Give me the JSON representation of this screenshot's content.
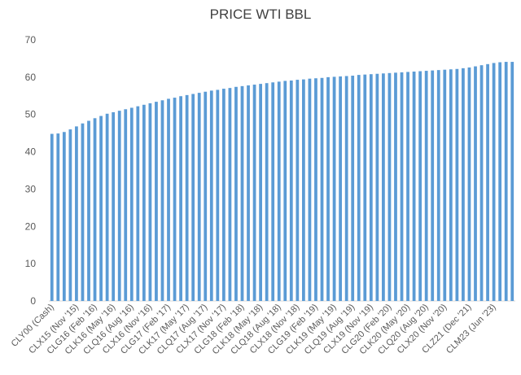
{
  "chart_data": {
    "type": "bar",
    "title": "PRICE WTI BBL",
    "ylim": [
      0,
      70
    ],
    "yticks": [
      0,
      10,
      20,
      30,
      40,
      50,
      60,
      70
    ],
    "grid": false,
    "color": "#5b9bd5",
    "values": [
      44.8,
      44.9,
      45.3,
      46.0,
      46.8,
      47.6,
      48.3,
      49.0,
      49.6,
      50.2,
      50.6,
      51.0,
      51.4,
      51.8,
      52.2,
      52.6,
      53.0,
      53.4,
      53.8,
      54.2,
      54.5,
      54.9,
      55.2,
      55.5,
      55.8,
      56.1,
      56.4,
      56.6,
      56.9,
      57.1,
      57.4,
      57.6,
      57.8,
      58.0,
      58.2,
      58.4,
      58.6,
      58.8,
      59.0,
      59.1,
      59.3,
      59.4,
      59.6,
      59.7,
      59.8,
      60.0,
      60.1,
      60.2,
      60.3,
      60.4,
      60.6,
      60.7,
      60.8,
      60.9,
      61.0,
      61.1,
      61.2,
      61.3,
      61.4,
      61.5,
      61.6,
      61.7,
      61.8,
      61.9,
      62.0,
      62.1,
      62.2,
      62.4,
      62.6,
      62.9,
      63.2,
      63.5,
      63.8,
      64.0,
      64.1,
      64.1
    ],
    "tick_labels": [
      {
        "index": 0,
        "text": "CLY00 (Cash)"
      },
      {
        "index": 4,
        "text": "CLX15 (Nov '15)"
      },
      {
        "index": 7,
        "text": "CLG16 (Feb '16)"
      },
      {
        "index": 10,
        "text": "CLK16 (May '16)"
      },
      {
        "index": 13,
        "text": "CLQ16 (Aug '16)"
      },
      {
        "index": 16,
        "text": "CLX16 (Nov '16)"
      },
      {
        "index": 19,
        "text": "CLG17 (Feb '17)"
      },
      {
        "index": 22,
        "text": "CLK17 (May '17)"
      },
      {
        "index": 25,
        "text": "CLQ17 (Aug '17)"
      },
      {
        "index": 28,
        "text": "CLX17 (Nov '17)"
      },
      {
        "index": 31,
        "text": "CLG18 (Feb '18)"
      },
      {
        "index": 34,
        "text": "CLK18 (May '18)"
      },
      {
        "index": 37,
        "text": "CLQ18 (Aug '18)"
      },
      {
        "index": 40,
        "text": "CLX18 (Nov '18)"
      },
      {
        "index": 43,
        "text": "CLG19 (Feb '19)"
      },
      {
        "index": 46,
        "text": "CLK19 (May '19)"
      },
      {
        "index": 49,
        "text": "CLQ19 (Aug '19)"
      },
      {
        "index": 52,
        "text": "CLX19 (Nov '19)"
      },
      {
        "index": 55,
        "text": "CLG20 (Feb '20)"
      },
      {
        "index": 58,
        "text": "CLK20 (May '20)"
      },
      {
        "index": 61,
        "text": "CLQ20 (Aug '20)"
      },
      {
        "index": 64,
        "text": "CLX20 (Nov '20)"
      },
      {
        "index": 68,
        "text": "CLZ21 (Dec '21)"
      },
      {
        "index": 72,
        "text": "CLM23 (Jun '23)"
      }
    ]
  }
}
